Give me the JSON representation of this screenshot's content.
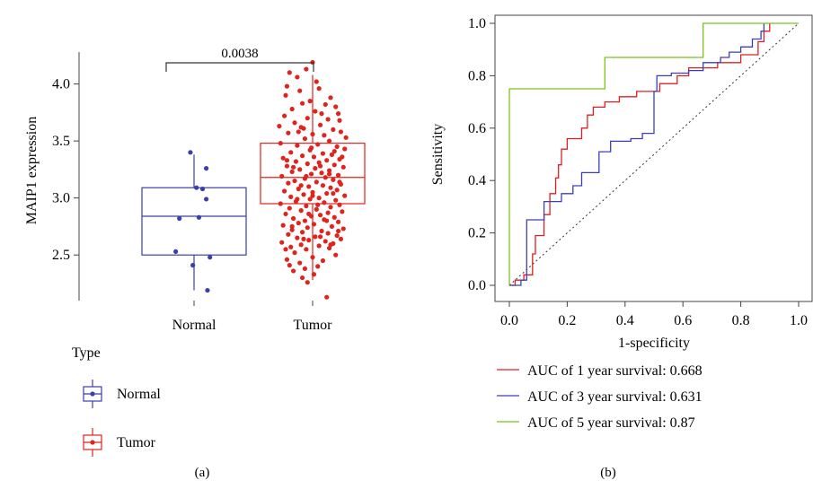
{
  "panel_a": {
    "label": "(a)",
    "legend_title": "Type",
    "legend_items": [
      "Normal",
      "Tumor"
    ],
    "colors": {
      "Normal": "#3b3fa8",
      "Tumor": "#e0231c"
    }
  },
  "panel_b": {
    "label": "(b)",
    "colors": {
      "y1": "#e02020",
      "y3": "#3b3fbf",
      "y5": "#7ec21a"
    }
  },
  "chart_data": [
    {
      "type": "box",
      "ylabel": "MAIP1 expression",
      "xlabel": "",
      "categories": [
        "Normal",
        "Tumor"
      ],
      "ylim": [
        2.1,
        4.28
      ],
      "yticks": [
        "2.5",
        "3.0",
        "3.5",
        "4.0"
      ],
      "pvalue": "0.0038",
      "boxes": [
        {
          "name": "Normal",
          "min": 2.19,
          "q1": 2.5,
          "median": 2.84,
          "q3": 3.09,
          "max": 3.38
        },
        {
          "name": "Tumor",
          "min": 2.28,
          "q1": 2.95,
          "median": 3.18,
          "q3": 3.48,
          "max": 4.08
        }
      ],
      "normal_points": [
        [
          -0.03,
          3.4
        ],
        [
          0.1,
          3.26
        ],
        [
          0.02,
          3.09
        ],
        [
          0.07,
          3.08
        ],
        [
          0.1,
          2.99
        ],
        [
          -0.12,
          2.82
        ],
        [
          0.04,
          2.83
        ],
        [
          -0.15,
          2.53
        ],
        [
          0.13,
          2.48
        ],
        [
          -0.01,
          2.41
        ],
        [
          0.11,
          2.19
        ]
      ],
      "tumor_points": [
        [
          0.0,
          4.19
        ],
        [
          -0.05,
          4.13
        ],
        [
          -0.18,
          4.1
        ],
        [
          -0.12,
          4.06
        ],
        [
          0.03,
          4.02
        ],
        [
          -0.2,
          3.98
        ],
        [
          -0.1,
          3.94
        ],
        [
          0.05,
          3.96
        ],
        [
          0.14,
          3.88
        ],
        [
          -0.02,
          3.85
        ],
        [
          -0.08,
          3.83
        ],
        [
          0.1,
          3.82
        ],
        [
          0.18,
          3.8
        ],
        [
          -0.16,
          3.78
        ],
        [
          0.02,
          3.76
        ],
        [
          0.2,
          3.74
        ],
        [
          -0.22,
          3.72
        ],
        [
          -0.04,
          3.7
        ],
        [
          0.12,
          3.69
        ],
        [
          -0.14,
          3.66
        ],
        [
          0.06,
          3.64
        ],
        [
          -0.09,
          3.62
        ],
        [
          0.16,
          3.6
        ],
        [
          0.22,
          3.58
        ],
        [
          -0.19,
          3.57
        ],
        [
          0.0,
          3.56
        ],
        [
          0.09,
          3.55
        ],
        [
          -0.06,
          3.52
        ],
        [
          0.13,
          3.5
        ],
        [
          -0.25,
          3.48
        ],
        [
          0.04,
          3.47
        ],
        [
          -0.12,
          3.46
        ],
        [
          0.19,
          3.45
        ],
        [
          0.25,
          3.43
        ],
        [
          -0.02,
          3.42
        ],
        [
          -0.17,
          3.4
        ],
        [
          0.08,
          3.39
        ],
        [
          0.15,
          3.38
        ],
        [
          -0.08,
          3.37
        ],
        [
          0.01,
          3.36
        ],
        [
          -0.23,
          3.35
        ],
        [
          0.21,
          3.34
        ],
        [
          0.11,
          3.33
        ],
        [
          -0.13,
          3.32
        ],
        [
          0.05,
          3.31
        ],
        [
          -0.04,
          3.3
        ],
        [
          0.17,
          3.29
        ],
        [
          -0.2,
          3.28
        ],
        [
          0.24,
          3.27
        ],
        [
          0.02,
          3.26
        ],
        [
          -0.1,
          3.25
        ],
        [
          0.13,
          3.24
        ],
        [
          -0.16,
          3.23
        ],
        [
          0.07,
          3.22
        ],
        [
          -0.01,
          3.21
        ],
        [
          0.2,
          3.2
        ],
        [
          -0.24,
          3.19
        ],
        [
          0.1,
          3.18
        ],
        [
          -0.06,
          3.17
        ],
        [
          0.16,
          3.16
        ],
        [
          -0.14,
          3.15
        ],
        [
          0.03,
          3.14
        ],
        [
          -0.19,
          3.13
        ],
        [
          0.22,
          3.12
        ],
        [
          0.08,
          3.11
        ],
        [
          -0.03,
          3.1
        ],
        [
          0.14,
          3.09
        ],
        [
          -0.11,
          3.08
        ],
        [
          0.19,
          3.07
        ],
        [
          -0.22,
          3.06
        ],
        [
          0.0,
          3.05
        ],
        [
          0.11,
          3.04
        ],
        [
          -0.07,
          3.03
        ],
        [
          0.25,
          3.02
        ],
        [
          -0.17,
          3.01
        ],
        [
          0.05,
          3.0
        ],
        [
          -0.02,
          2.99
        ],
        [
          0.18,
          2.98
        ],
        [
          -0.13,
          2.97
        ],
        [
          0.09,
          2.96
        ],
        [
          -0.25,
          2.95
        ],
        [
          0.21,
          2.94
        ],
        [
          -0.05,
          2.93
        ],
        [
          0.14,
          2.92
        ],
        [
          -0.18,
          2.91
        ],
        [
          0.03,
          2.9
        ],
        [
          -0.09,
          2.89
        ],
        [
          0.23,
          2.88
        ],
        [
          0.12,
          2.87
        ],
        [
          -0.21,
          2.86
        ],
        [
          0.06,
          2.85
        ],
        [
          -0.01,
          2.84
        ],
        [
          0.17,
          2.83
        ],
        [
          -0.15,
          2.82
        ],
        [
          0.09,
          2.81
        ],
        [
          -0.06,
          2.8
        ],
        [
          0.2,
          2.79
        ],
        [
          -0.11,
          2.78
        ],
        [
          0.01,
          2.77
        ],
        [
          -0.23,
          2.76
        ],
        [
          0.15,
          2.75
        ],
        [
          -0.04,
          2.74
        ],
        [
          0.24,
          2.73
        ],
        [
          -0.16,
          2.72
        ],
        [
          0.07,
          2.71
        ],
        [
          -0.08,
          2.7
        ],
        [
          0.12,
          2.69
        ],
        [
          -0.19,
          2.68
        ],
        [
          0.19,
          2.67
        ],
        [
          0.02,
          2.66
        ],
        [
          -0.12,
          2.65
        ],
        [
          0.22,
          2.64
        ],
        [
          -0.03,
          2.63
        ],
        [
          0.1,
          2.62
        ],
        [
          -0.24,
          2.61
        ],
        [
          0.16,
          2.6
        ],
        [
          -0.09,
          2.59
        ],
        [
          0.05,
          2.58
        ],
        [
          -0.17,
          2.57
        ],
        [
          0.13,
          2.56
        ],
        [
          -0.05,
          2.55
        ],
        [
          -0.14,
          2.52
        ],
        [
          0.18,
          2.5
        ],
        [
          0.0,
          2.48
        ],
        [
          -0.2,
          2.46
        ],
        [
          0.08,
          2.45
        ],
        [
          -0.1,
          2.43
        ],
        [
          -0.18,
          2.41
        ],
        [
          0.04,
          2.4
        ],
        [
          -0.06,
          2.38
        ],
        [
          -0.15,
          2.36
        ],
        [
          0.01,
          2.33
        ],
        [
          -0.08,
          2.3
        ],
        [
          -0.04,
          2.26
        ],
        [
          0.11,
          2.13
        ],
        [
          -0.21,
          3.9
        ],
        [
          0.21,
          3.68
        ],
        [
          -0.26,
          3.63
        ],
        [
          0.26,
          3.53
        ],
        [
          -0.11,
          3.58
        ],
        [
          0.07,
          3.74
        ],
        [
          -0.07,
          3.61
        ],
        [
          0.17,
          3.41
        ],
        [
          -0.01,
          3.44
        ],
        [
          0.23,
          3.36
        ],
        [
          -0.2,
          3.33
        ],
        [
          0.06,
          3.28
        ],
        [
          -0.15,
          3.27
        ],
        [
          0.13,
          3.21
        ],
        [
          -0.05,
          3.19
        ],
        [
          0.21,
          3.14
        ],
        [
          -0.09,
          3.11
        ],
        [
          0.0,
          3.02
        ],
        [
          0.16,
          3.04
        ],
        [
          -0.12,
          2.99
        ],
        [
          0.04,
          2.94
        ],
        [
          -0.03,
          2.86
        ],
        [
          0.11,
          2.8
        ],
        [
          -0.16,
          2.75
        ],
        [
          0.2,
          2.71
        ],
        [
          0.06,
          2.66
        ],
        [
          -0.07,
          2.64
        ],
        [
          0.14,
          2.59
        ],
        [
          -0.21,
          2.55
        ]
      ]
    },
    {
      "type": "line",
      "xlabel": "1-specificity",
      "ylabel": "Sensitivity",
      "xlim": [
        -0.02,
        1.03
      ],
      "ylim": [
        -0.02,
        1.03
      ],
      "xticks": [
        "0.0",
        "0.2",
        "0.4",
        "0.6",
        "0.8",
        "1.0"
      ],
      "yticks": [
        "0.0",
        "0.2",
        "0.4",
        "0.6",
        "0.8",
        "1.0"
      ],
      "reference_line": [
        [
          0,
          0
        ],
        [
          1,
          1
        ]
      ],
      "series": [
        {
          "name": "AUC of 1 year survival: 0.668",
          "points": [
            [
              0,
              0
            ],
            [
              0.02,
              0
            ],
            [
              0.02,
              0.02
            ],
            [
              0.05,
              0.02
            ],
            [
              0.05,
              0.04
            ],
            [
              0.08,
              0.04
            ],
            [
              0.08,
              0.12
            ],
            [
              0.09,
              0.12
            ],
            [
              0.09,
              0.19
            ],
            [
              0.12,
              0.19
            ],
            [
              0.12,
              0.27
            ],
            [
              0.14,
              0.27
            ],
            [
              0.14,
              0.35
            ],
            [
              0.16,
              0.35
            ],
            [
              0.16,
              0.41
            ],
            [
              0.17,
              0.41
            ],
            [
              0.17,
              0.46
            ],
            [
              0.18,
              0.46
            ],
            [
              0.18,
              0.52
            ],
            [
              0.2,
              0.52
            ],
            [
              0.2,
              0.56
            ],
            [
              0.25,
              0.56
            ],
            [
              0.25,
              0.6
            ],
            [
              0.27,
              0.6
            ],
            [
              0.27,
              0.65
            ],
            [
              0.29,
              0.65
            ],
            [
              0.29,
              0.68
            ],
            [
              0.33,
              0.68
            ],
            [
              0.33,
              0.7
            ],
            [
              0.38,
              0.7
            ],
            [
              0.38,
              0.72
            ],
            [
              0.44,
              0.72
            ],
            [
              0.44,
              0.74
            ],
            [
              0.52,
              0.74
            ],
            [
              0.52,
              0.77
            ],
            [
              0.58,
              0.77
            ],
            [
              0.58,
              0.8
            ],
            [
              0.62,
              0.8
            ],
            [
              0.62,
              0.83
            ],
            [
              0.72,
              0.83
            ],
            [
              0.72,
              0.85
            ],
            [
              0.8,
              0.85
            ],
            [
              0.8,
              0.88
            ],
            [
              0.86,
              0.88
            ],
            [
              0.86,
              0.93
            ],
            [
              0.88,
              0.93
            ],
            [
              0.88,
              0.97
            ],
            [
              0.9,
              0.97
            ],
            [
              0.9,
              1.0
            ]
          ]
        },
        {
          "name": "AUC of 3 year survival: 0.631",
          "points": [
            [
              0,
              0
            ],
            [
              0.04,
              0
            ],
            [
              0.04,
              0.02
            ],
            [
              0.06,
              0.02
            ],
            [
              0.06,
              0.25
            ],
            [
              0.12,
              0.25
            ],
            [
              0.12,
              0.32
            ],
            [
              0.18,
              0.32
            ],
            [
              0.18,
              0.35
            ],
            [
              0.22,
              0.35
            ],
            [
              0.22,
              0.38
            ],
            [
              0.25,
              0.38
            ],
            [
              0.25,
              0.43
            ],
            [
              0.31,
              0.43
            ],
            [
              0.31,
              0.51
            ],
            [
              0.35,
              0.51
            ],
            [
              0.35,
              0.55
            ],
            [
              0.42,
              0.55
            ],
            [
              0.42,
              0.56
            ],
            [
              0.46,
              0.56
            ],
            [
              0.46,
              0.58
            ],
            [
              0.5,
              0.58
            ],
            [
              0.5,
              0.74
            ],
            [
              0.51,
              0.74
            ],
            [
              0.51,
              0.8
            ],
            [
              0.56,
              0.8
            ],
            [
              0.56,
              0.81
            ],
            [
              0.62,
              0.81
            ],
            [
              0.62,
              0.82
            ],
            [
              0.67,
              0.82
            ],
            [
              0.67,
              0.85
            ],
            [
              0.73,
              0.85
            ],
            [
              0.73,
              0.87
            ],
            [
              0.76,
              0.87
            ],
            [
              0.76,
              0.89
            ],
            [
              0.8,
              0.89
            ],
            [
              0.8,
              0.91
            ],
            [
              0.84,
              0.91
            ],
            [
              0.84,
              0.94
            ],
            [
              0.87,
              0.94
            ],
            [
              0.87,
              0.97
            ],
            [
              0.88,
              0.97
            ],
            [
              0.88,
              1.0
            ]
          ]
        },
        {
          "name": "AUC of 5 year survival: 0.87",
          "points": [
            [
              0,
              0
            ],
            [
              0,
              0.75
            ],
            [
              0.33,
              0.75
            ],
            [
              0.33,
              0.87
            ],
            [
              0.67,
              0.87
            ],
            [
              0.67,
              1.0
            ],
            [
              1.0,
              1.0
            ]
          ]
        }
      ]
    }
  ]
}
